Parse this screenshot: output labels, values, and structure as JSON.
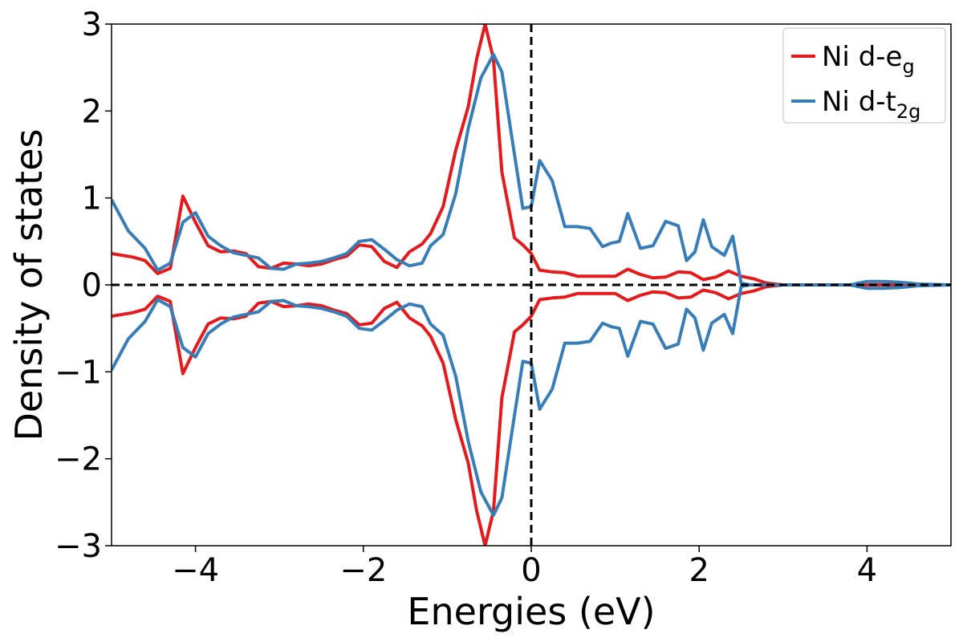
{
  "chart_data": {
    "type": "line",
    "title": "",
    "xlabel": "Energies (eV)",
    "ylabel": "Density of states",
    "xlim": [
      -5,
      5
    ],
    "ylim": [
      -3,
      3
    ],
    "xticks": [
      -4,
      -2,
      0,
      2,
      4
    ],
    "xtick_labels": [
      "−4",
      "−2",
      "0",
      "2",
      "4"
    ],
    "yticks": [
      -3,
      -2,
      -1,
      0,
      1,
      2,
      3
    ],
    "ytick_labels": [
      "−3",
      "−2",
      "−1",
      "0",
      "1",
      "2",
      "3"
    ],
    "grid": false,
    "legend_position": "top-right",
    "reference_lines": [
      {
        "orientation": "horizontal",
        "value": 0,
        "style": "dashed",
        "color": "#000000"
      },
      {
        "orientation": "vertical",
        "value": 0,
        "style": "dashed",
        "color": "#000000"
      }
    ],
    "mirrored_negative": true,
    "series": [
      {
        "name": "Ni d-eg",
        "legend_base": "Ni d-e",
        "legend_sub": "g",
        "color": "#e41a1c",
        "x": [
          -5.0,
          -4.75,
          -4.6,
          -4.45,
          -4.3,
          -4.15,
          -4.0,
          -3.85,
          -3.7,
          -3.55,
          -3.4,
          -3.25,
          -3.1,
          -2.95,
          -2.8,
          -2.65,
          -2.5,
          -2.35,
          -2.2,
          -2.05,
          -1.9,
          -1.75,
          -1.6,
          -1.45,
          -1.3,
          -1.2,
          -1.05,
          -0.9,
          -0.75,
          -0.65,
          -0.55,
          -0.45,
          -0.35,
          -0.2,
          -0.1,
          0.0,
          0.1,
          0.25,
          0.4,
          0.55,
          0.7,
          0.85,
          1.0,
          1.15,
          1.3,
          1.45,
          1.6,
          1.75,
          1.9,
          2.05,
          2.2,
          2.35,
          2.5,
          2.65,
          2.8,
          3.0,
          3.5,
          4.0,
          4.5,
          5.0
        ],
        "y": [
          0.36,
          0.32,
          0.28,
          0.13,
          0.19,
          1.02,
          0.72,
          0.45,
          0.38,
          0.39,
          0.36,
          0.21,
          0.19,
          0.25,
          0.24,
          0.22,
          0.24,
          0.29,
          0.33,
          0.46,
          0.44,
          0.27,
          0.2,
          0.38,
          0.47,
          0.59,
          0.9,
          1.55,
          2.05,
          2.6,
          3.0,
          2.6,
          1.3,
          0.54,
          0.46,
          0.36,
          0.17,
          0.15,
          0.14,
          0.1,
          0.1,
          0.1,
          0.1,
          0.18,
          0.12,
          0.08,
          0.09,
          0.15,
          0.14,
          0.06,
          0.09,
          0.16,
          0.1,
          0.07,
          0.02,
          0.0,
          0.0,
          0.0,
          0.0,
          0.0
        ]
      },
      {
        "name": "Ni d-t2g",
        "legend_base": "Ni d-t",
        "legend_sub": "2g",
        "color": "#377eb8",
        "x": [
          -5.0,
          -4.8,
          -4.6,
          -4.45,
          -4.3,
          -4.15,
          -4.0,
          -3.85,
          -3.7,
          -3.55,
          -3.4,
          -3.25,
          -3.1,
          -2.95,
          -2.8,
          -2.65,
          -2.5,
          -2.35,
          -2.2,
          -2.05,
          -1.9,
          -1.75,
          -1.6,
          -1.45,
          -1.3,
          -1.2,
          -1.05,
          -0.9,
          -0.75,
          -0.6,
          -0.45,
          -0.35,
          -0.2,
          -0.1,
          0.0,
          0.1,
          0.25,
          0.4,
          0.55,
          0.7,
          0.85,
          0.95,
          1.05,
          1.15,
          1.3,
          1.45,
          1.6,
          1.75,
          1.85,
          1.95,
          2.05,
          2.15,
          2.3,
          2.4,
          2.5,
          2.6,
          2.75,
          3.0,
          3.8,
          4.0,
          4.2,
          4.4,
          4.6,
          5.0
        ],
        "y": [
          0.98,
          0.62,
          0.42,
          0.17,
          0.25,
          0.72,
          0.83,
          0.56,
          0.45,
          0.37,
          0.34,
          0.31,
          0.19,
          0.18,
          0.24,
          0.25,
          0.27,
          0.31,
          0.36,
          0.5,
          0.52,
          0.41,
          0.29,
          0.22,
          0.25,
          0.45,
          0.58,
          1.05,
          1.8,
          2.38,
          2.65,
          2.45,
          1.5,
          0.88,
          0.9,
          1.43,
          1.2,
          0.67,
          0.67,
          0.65,
          0.44,
          0.48,
          0.5,
          0.82,
          0.42,
          0.45,
          0.73,
          0.68,
          0.28,
          0.38,
          0.75,
          0.44,
          0.34,
          0.56,
          0.02,
          0.0,
          0.0,
          0.0,
          0.0,
          0.04,
          0.04,
          0.03,
          0.01,
          0.0
        ]
      }
    ]
  }
}
